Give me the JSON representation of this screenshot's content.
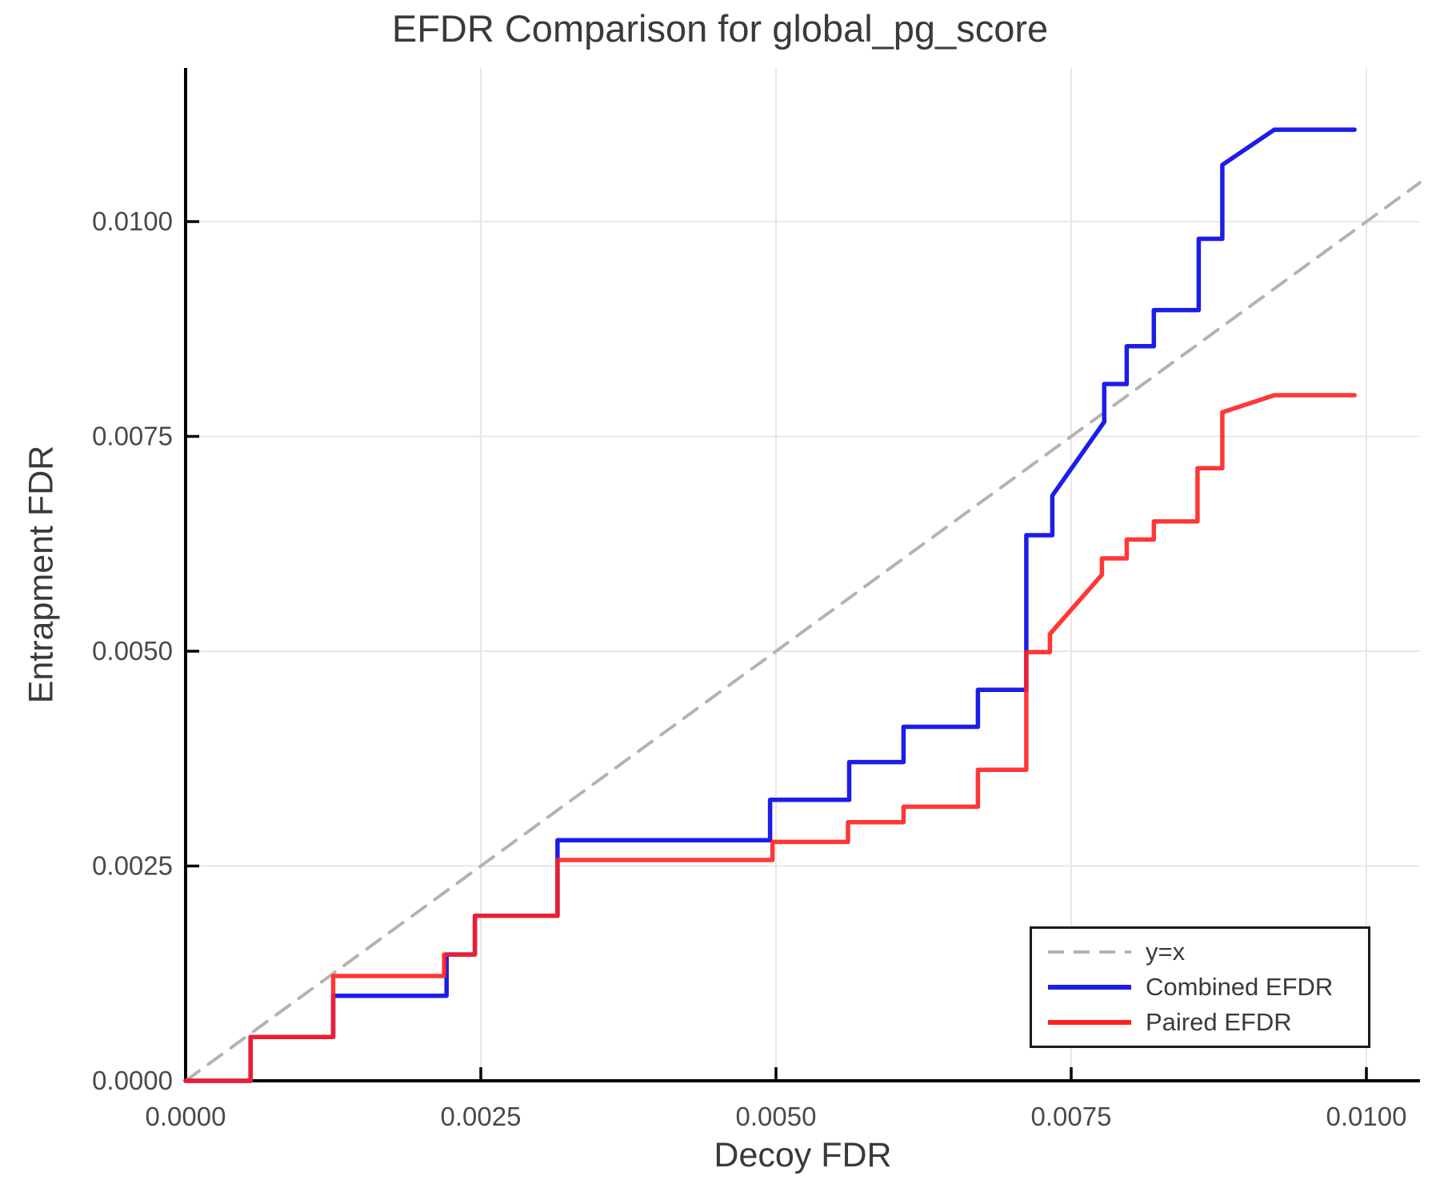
{
  "chart_data": {
    "type": "line",
    "title": "EFDR Comparison for global_pg_score",
    "xlabel": "Decoy FDR",
    "ylabel": "Entrapment FDR",
    "xlim": [
      0,
      0.010454
    ],
    "ylim": [
      0,
      0.011788
    ],
    "grid": true,
    "legend_position": "lower right",
    "colors": {
      "grid": "#e7e7e7",
      "spine": "#000000",
      "dashed_reference": "#b3b3b3",
      "combined": "#1d1de8",
      "paired": "#ff2121",
      "text": "#3a3a3a",
      "tick_text": "#4a4a4a"
    },
    "x_ticks": [
      {
        "value": 0.0,
        "label": "0.0000"
      },
      {
        "value": 0.0025,
        "label": "0.0025"
      },
      {
        "value": 0.005,
        "label": "0.0050"
      },
      {
        "value": 0.0075,
        "label": "0.0075"
      },
      {
        "value": 0.01,
        "label": "0.0100"
      }
    ],
    "y_ticks": [
      {
        "value": 0.0,
        "label": "0.0000"
      },
      {
        "value": 0.0025,
        "label": "0.0025"
      },
      {
        "value": 0.005,
        "label": "0.0050"
      },
      {
        "value": 0.0075,
        "label": "0.0075"
      },
      {
        "value": 0.01,
        "label": "0.0100"
      }
    ],
    "legend": {
      "entries": [
        {
          "label": "y=x",
          "color": "#b3b3b3",
          "dash": "20 12",
          "width": 4
        },
        {
          "label": "Combined EFDR",
          "color": "#1d1de8",
          "dash": "",
          "width": 6
        },
        {
          "label": "Paired EFDR",
          "color": "#ff2121",
          "dash": "",
          "width": 6
        }
      ]
    },
    "series": [
      {
        "name": "y=x",
        "color": "#b3b3b3",
        "dash": "21 14",
        "width": 4,
        "opacity": 1,
        "points": [
          [
            0,
            0
          ],
          [
            0.010454,
            0.010454
          ]
        ]
      },
      {
        "name": "Combined EFDR",
        "color": "#1d1de8",
        "dash": "",
        "width": 5.5,
        "opacity": 1,
        "points": [
          [
            0,
            0
          ],
          [
            0.00055,
            0
          ],
          [
            0.00055,
            0.00051
          ],
          [
            0.00125,
            0.00051
          ],
          [
            0.00125,
            0.00099
          ],
          [
            0.00221,
            0.00099
          ],
          [
            0.00221,
            0.00147
          ],
          [
            0.00245,
            0.00147
          ],
          [
            0.00245,
            0.00192
          ],
          [
            0.00315,
            0.00192
          ],
          [
            0.00315,
            0.0028
          ],
          [
            0.00495,
            0.0028
          ],
          [
            0.00495,
            0.00327
          ],
          [
            0.00562,
            0.00327
          ],
          [
            0.00562,
            0.00371
          ],
          [
            0.00608,
            0.00371
          ],
          [
            0.00608,
            0.00412
          ],
          [
            0.00671,
            0.00412
          ],
          [
            0.00671,
            0.00455
          ],
          [
            0.00712,
            0.00455
          ],
          [
            0.00712,
            0.00635
          ],
          [
            0.00734,
            0.00635
          ],
          [
            0.00734,
            0.00681
          ],
          [
            0.00778,
            0.00767
          ],
          [
            0.00778,
            0.00811
          ],
          [
            0.00797,
            0.00811
          ],
          [
            0.00797,
            0.00855
          ],
          [
            0.0082,
            0.00855
          ],
          [
            0.0082,
            0.00897
          ],
          [
            0.00858,
            0.00897
          ],
          [
            0.00858,
            0.0098
          ],
          [
            0.00878,
            0.0098
          ],
          [
            0.00878,
            0.01066
          ],
          [
            0.00922,
            0.01107
          ],
          [
            0.0099,
            0.01107
          ]
        ]
      },
      {
        "name": "Paired EFDR",
        "color": "#ff2121",
        "dash": "",
        "width": 5.5,
        "opacity": 0.9,
        "points": [
          [
            0,
            0
          ],
          [
            0.00055,
            0
          ],
          [
            0.00055,
            0.00051
          ],
          [
            0.00125,
            0.00051
          ],
          [
            0.00125,
            0.00122
          ],
          [
            0.00219,
            0.00122
          ],
          [
            0.00219,
            0.00147
          ],
          [
            0.00245,
            0.00147
          ],
          [
            0.00245,
            0.00192
          ],
          [
            0.00315,
            0.00192
          ],
          [
            0.00315,
            0.00257
          ],
          [
            0.00497,
            0.00257
          ],
          [
            0.00497,
            0.00278
          ],
          [
            0.00561,
            0.00278
          ],
          [
            0.00561,
            0.00301
          ],
          [
            0.00608,
            0.00301
          ],
          [
            0.00608,
            0.00319
          ],
          [
            0.00671,
            0.00319
          ],
          [
            0.00671,
            0.00362
          ],
          [
            0.00712,
            0.00362
          ],
          [
            0.00712,
            0.00499
          ],
          [
            0.00732,
            0.00499
          ],
          [
            0.00732,
            0.0052
          ],
          [
            0.00776,
            0.00589
          ],
          [
            0.00776,
            0.00608
          ],
          [
            0.00797,
            0.00608
          ],
          [
            0.00797,
            0.0063
          ],
          [
            0.0082,
            0.0063
          ],
          [
            0.0082,
            0.00651
          ],
          [
            0.00857,
            0.00651
          ],
          [
            0.00857,
            0.00713
          ],
          [
            0.00878,
            0.00713
          ],
          [
            0.00878,
            0.00778
          ],
          [
            0.00922,
            0.00798
          ],
          [
            0.0099,
            0.00798
          ]
        ]
      }
    ]
  }
}
